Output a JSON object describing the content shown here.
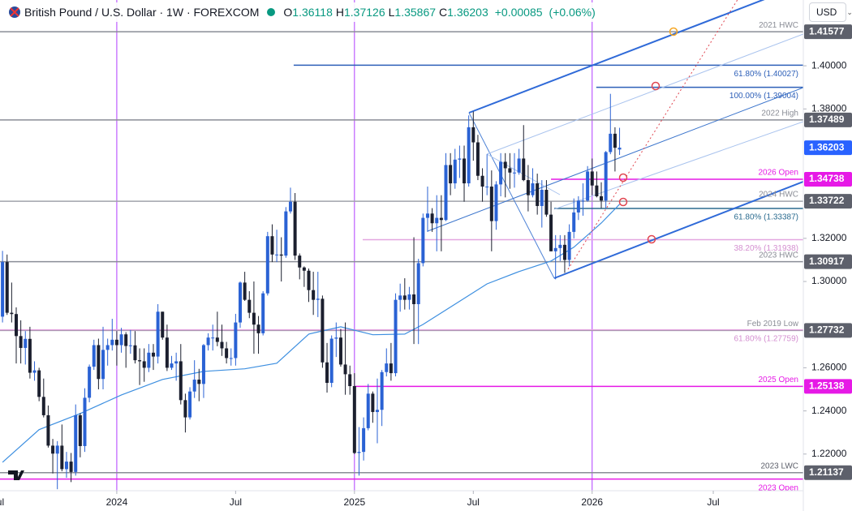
{
  "chart_data": {
    "type": "candlestick",
    "title": "British Pound / U.S. Dollar · 1W · FOREXCOM",
    "ohlc_labels": [
      "O",
      "H",
      "L",
      "C"
    ],
    "change": "+0.00085",
    "change_pct": "(+0.06%)",
    "currency": "USD",
    "up_color": "#2a62d4",
    "down_color": "#1b1f2e",
    "last_price_color": "#2962ff",
    "xlim": [
      -0.55,
      175.2
    ],
    "xticks": [
      {
        "value": -1,
        "label": "Jul"
      },
      {
        "value": 25,
        "label": "2024"
      },
      {
        "value": 51,
        "label": "Jul"
      },
      {
        "value": 77,
        "label": "2025"
      },
      {
        "value": 103,
        "label": "Jul"
      },
      {
        "value": 129,
        "label": "2026"
      },
      {
        "value": 155.5,
        "label": "Jul"
      }
    ],
    "session_breaks": [
      25,
      77,
      129
    ],
    "session_color": "#b03cff",
    "ylim": [
      1.203,
      1.4305
    ],
    "yticks": [
      {
        "value": 1.22,
        "label": "1.22000"
      },
      {
        "value": 1.24,
        "label": "1.24000"
      },
      {
        "value": 1.26,
        "label": "1.26000"
      },
      {
        "value": 1.3,
        "label": "1.30000"
      },
      {
        "value": 1.32,
        "label": "1.32000"
      },
      {
        "value": 1.38,
        "label": "1.38000"
      },
      {
        "value": 1.4,
        "label": "1.40000"
      }
    ],
    "open": [
      1.2837,
      1.309,
      1.2855,
      1.2849,
      1.2747,
      1.2692,
      1.2734,
      1.2577,
      1.2588,
      1.2465,
      1.238,
      1.2239,
      1.2202,
      1.2239,
      1.213,
      1.2165,
      1.2117,
      1.238,
      1.2237,
      1.2461,
      1.2605,
      1.2705,
      1.2548,
      1.2683,
      1.2705,
      1.273,
      1.2705,
      1.2755,
      1.2701,
      1.2704,
      1.2635,
      1.263,
      1.26,
      1.267,
      1.2652,
      1.286,
      1.274,
      1.26,
      1.262,
      1.263,
      1.245,
      1.237,
      1.249,
      1.2545,
      1.2525,
      1.2705,
      1.274,
      1.274,
      1.272,
      1.269,
      1.2645,
      1.2645,
      1.281,
      1.2995,
      1.2915,
      1.2855,
      1.28,
      1.276,
      1.2945,
      1.321,
      1.3125,
      1.3125,
      1.312,
      1.3325,
      1.337,
      1.312,
      1.3065,
      1.305,
      1.296,
      1.2915,
      1.292,
      1.2625,
      1.253,
      1.2735,
      1.274,
      1.2615,
      1.257,
      1.2515,
      1.2205,
      1.221,
      1.232,
      1.248,
      1.2395,
      1.2405,
      1.258,
      1.262,
      1.2575,
      1.2915,
      1.2935,
      1.2915,
      1.294,
      1.2895,
      1.3085,
      1.3295,
      1.3315,
      1.327,
      1.3295,
      1.3285,
      1.354,
      1.3455,
      1.3565,
      1.357,
      1.3455,
      1.3715,
      1.3645,
      1.349,
      1.344,
      1.344,
      1.328,
      1.345,
      1.3555,
      1.3525,
      1.3505,
      1.3505,
      1.357,
      1.347,
      1.34,
      1.3455,
      1.335,
      1.3425,
      1.331,
      1.314,
      1.3155,
      1.317,
      1.31,
      1.323,
      1.332,
      1.3375,
      1.3375,
      1.351,
      1.3445,
      1.3395,
      1.3375,
      1.36,
      1.3685,
      1.36118
    ],
    "high": [
      1.3142,
      1.3125,
      1.2995,
      1.288,
      1.282,
      1.277,
      1.279,
      1.263,
      1.26,
      1.255,
      1.2425,
      1.227,
      1.226,
      1.2337,
      1.221,
      1.2205,
      1.243,
      1.239,
      1.2505,
      1.2615,
      1.273,
      1.2735,
      1.279,
      1.2735,
      1.2827,
      1.277,
      1.2785,
      1.2765,
      1.2775,
      1.277,
      1.269,
      1.269,
      1.271,
      1.271,
      1.2895,
      1.286,
      1.28,
      1.2655,
      1.267,
      1.271,
      1.248,
      1.251,
      1.2635,
      1.2595,
      1.271,
      1.276,
      1.28,
      1.286,
      1.28,
      1.272,
      1.269,
      1.285,
      1.3,
      1.3045,
      1.2955,
      1.3,
      1.284,
      1.2955,
      1.323,
      1.3265,
      1.324,
      1.3205,
      1.3345,
      1.3435,
      1.341,
      1.313,
      1.307,
      1.306,
      1.3045,
      1.3045,
      1.2935,
      1.2715,
      1.275,
      1.281,
      1.278,
      1.281,
      1.261,
      1.2575,
      1.2325,
      1.237,
      1.2525,
      1.249,
      1.255,
      1.259,
      1.269,
      1.2715,
      1.2945,
      1.299,
      1.3015,
      1.2975,
      1.3205,
      1.3105,
      1.3315,
      1.344,
      1.334,
      1.34,
      1.34,
      1.3595,
      1.3595,
      1.3615,
      1.363,
      1.363,
      1.377,
      1.3788,
      1.368,
      1.3525,
      1.359,
      1.3515,
      1.3465,
      1.3595,
      1.3595,
      1.3595,
      1.3595,
      1.3615,
      1.3725,
      1.354,
      1.3525,
      1.35,
      1.347,
      1.347,
      1.337,
      1.3215,
      1.3215,
      1.3215,
      1.3265,
      1.3385,
      1.3395,
      1.3455,
      1.3535,
      1.357,
      1.351,
      1.346,
      1.3605,
      1.387,
      1.3715,
      1.37126
    ],
    "low": [
      1.281,
      1.2845,
      1.281,
      1.262,
      1.262,
      1.2615,
      1.255,
      1.254,
      1.2445,
      1.237,
      1.223,
      1.211,
      1.2037,
      1.212,
      1.209,
      1.207,
      1.21,
      1.2185,
      1.221,
      1.244,
      1.259,
      1.25,
      1.25,
      1.261,
      1.268,
      1.261,
      1.267,
      1.26,
      1.2665,
      1.262,
      1.252,
      1.2535,
      1.258,
      1.259,
      1.262,
      1.273,
      1.2585,
      1.259,
      1.254,
      1.243,
      1.23,
      1.236,
      1.246,
      1.2445,
      1.246,
      1.268,
      1.268,
      1.27,
      1.2655,
      1.262,
      1.261,
      1.261,
      1.2785,
      1.291,
      1.283,
      1.2665,
      1.2665,
      1.275,
      1.2935,
      1.309,
      1.309,
      1.3,
      1.311,
      1.3315,
      1.31,
      1.301,
      1.2975,
      1.2905,
      1.2845,
      1.2835,
      1.26,
      1.2485,
      1.251,
      1.265,
      1.2605,
      1.2475,
      1.2475,
      1.22,
      1.21,
      1.217,
      1.231,
      1.2345,
      1.225,
      1.233,
      1.256,
      1.254,
      1.256,
      1.286,
      1.287,
      1.287,
      1.271,
      1.271,
      1.307,
      1.323,
      1.323,
      1.314,
      1.314,
      1.328,
      1.34,
      1.343,
      1.348,
      1.337,
      1.344,
      1.356,
      1.347,
      1.337,
      1.34,
      1.314,
      1.324,
      1.3395,
      1.339,
      1.343,
      1.3435,
      1.3495,
      1.3465,
      1.3325,
      1.339,
      1.331,
      1.325,
      1.33,
      1.314,
      1.301,
      1.3095,
      1.304,
      1.307,
      1.32,
      1.3285,
      1.3305,
      1.337,
      1.34,
      1.339,
      1.334,
      1.334,
      1.359,
      1.351,
      1.35867
    ],
    "close": [
      1.309,
      1.2855,
      1.2849,
      1.2747,
      1.2692,
      1.2734,
      1.2577,
      1.2588,
      1.2465,
      1.238,
      1.2239,
      1.2202,
      1.2239,
      1.213,
      1.2165,
      1.2117,
      1.238,
      1.2237,
      1.2461,
      1.2605,
      1.2705,
      1.2548,
      1.2683,
      1.2705,
      1.273,
      1.2705,
      1.2755,
      1.2701,
      1.2704,
      1.2635,
      1.263,
      1.26,
      1.267,
      1.2652,
      1.286,
      1.274,
      1.26,
      1.262,
      1.263,
      1.245,
      1.237,
      1.249,
      1.2545,
      1.2525,
      1.2705,
      1.274,
      1.274,
      1.272,
      1.269,
      1.2645,
      1.2645,
      1.281,
      1.2995,
      1.2915,
      1.2855,
      1.28,
      1.276,
      1.2945,
      1.321,
      1.3125,
      1.3125,
      1.312,
      1.3325,
      1.337,
      1.312,
      1.3065,
      1.305,
      1.296,
      1.2915,
      1.292,
      1.2625,
      1.253,
      1.2735,
      1.274,
      1.2615,
      1.257,
      1.2515,
      1.2205,
      1.221,
      1.232,
      1.248,
      1.2395,
      1.2405,
      1.258,
      1.262,
      1.2575,
      1.2915,
      1.2935,
      1.2915,
      1.294,
      1.2895,
      1.3085,
      1.3295,
      1.3315,
      1.327,
      1.3295,
      1.3285,
      1.354,
      1.3455,
      1.3565,
      1.357,
      1.3455,
      1.3715,
      1.3645,
      1.349,
      1.344,
      1.344,
      1.328,
      1.345,
      1.3555,
      1.3525,
      1.3505,
      1.3505,
      1.357,
      1.347,
      1.34,
      1.3455,
      1.335,
      1.3425,
      1.331,
      1.314,
      1.3155,
      1.317,
      1.31,
      1.323,
      1.332,
      1.3375,
      1.3375,
      1.351,
      1.3445,
      1.3395,
      1.3375,
      1.36,
      1.3685,
      1.362,
      1.36203
    ],
    "moving_average": {
      "color": "#3d8fe0",
      "x": [
        0,
        8,
        17,
        26,
        35,
        44,
        53,
        60,
        67,
        74,
        81,
        88,
        92,
        99,
        106,
        113,
        120,
        125,
        131,
        135
      ],
      "values": [
        1.2162,
        1.2313,
        1.2388,
        1.2474,
        1.2546,
        1.2583,
        1.2595,
        1.2621,
        1.2756,
        1.279,
        1.2753,
        1.2756,
        1.2801,
        1.2895,
        1.2989,
        1.3046,
        1.3095,
        1.3159,
        1.3271,
        1.3358
      ]
    },
    "levels": [
      {
        "value": 1.41577,
        "label": "2021 HWC",
        "color": "#8a8d96",
        "text_color": "#8a8d96",
        "side": "above",
        "tag": true,
        "tag_color": "#5d606b"
      },
      {
        "value": 1.40027,
        "label": "61.80% (1.40027)",
        "color": "#2d5fb8",
        "text_color": "#2d5fb8",
        "side": "below",
        "from": 63.7
      },
      {
        "value": 1.39004,
        "label": "100.00% (1.39004)",
        "color": "#2d5fb8",
        "text_color": "#2d5fb8",
        "side": "below",
        "from": 129.9
      },
      {
        "value": 1.37489,
        "label": "2022 High",
        "color": "#8a8d96",
        "text_color": "#8a8d96",
        "side": "above",
        "tag": true,
        "tag_color": "#5d606b"
      },
      {
        "value": 1.34738,
        "label": "2026 Open",
        "color": "#e619e6",
        "text_color": "#e619e6",
        "side": "above",
        "from": 120,
        "tag": true,
        "tag_color": "#e619e6"
      },
      {
        "value": 1.33722,
        "label": "2024 HWC",
        "color": "#a0a3ab",
        "text_color": "#8a8d96",
        "side": "above",
        "tag": true,
        "tag_color": "#5d606b"
      },
      {
        "value": 1.33387,
        "label": "61.80% (1.33387)",
        "color": "#2b6b8f",
        "text_color": "#2b6b8f",
        "side": "below",
        "from": 120.7
      },
      {
        "value": 1.31938,
        "label": "38.20% (1.31938)",
        "color": "#e3a6e0",
        "text_color": "#d48fd0",
        "side": "below",
        "from": 78.8
      },
      {
        "value": 1.30917,
        "label": "2023 HWC",
        "color": "#8a8d96",
        "text_color": "#8a8d96",
        "side": "above",
        "tag": true,
        "tag_color": "#5d606b"
      },
      {
        "value": 1.27732,
        "label": "Feb 2019 Low",
        "color": "#8a8d96",
        "text_color": "#8a8d96",
        "side": "above",
        "tag": true,
        "tag_color": "#5d606b"
      },
      {
        "value": 1.27759,
        "label": "61.80% (1.27759)",
        "color": "#e3a6e0",
        "text_color": "#d48fd0",
        "side": "below"
      },
      {
        "value": 1.25138,
        "label": "2025 Open",
        "color": "#e619e6",
        "text_color": "#e619e6",
        "side": "above",
        "from": 77,
        "tag": true,
        "tag_color": "#e619e6"
      },
      {
        "value": 1.21137,
        "label": "2023 LWC",
        "color": "#8a8d96",
        "text_color": "#5d606b",
        "side": "above",
        "tag": true,
        "tag_color": "#5d606b"
      },
      {
        "value": 1.2084,
        "label": "2023 Open",
        "color": "#e619e6",
        "text_color": "#e619e6",
        "side": "below"
      }
    ]
  }
}
